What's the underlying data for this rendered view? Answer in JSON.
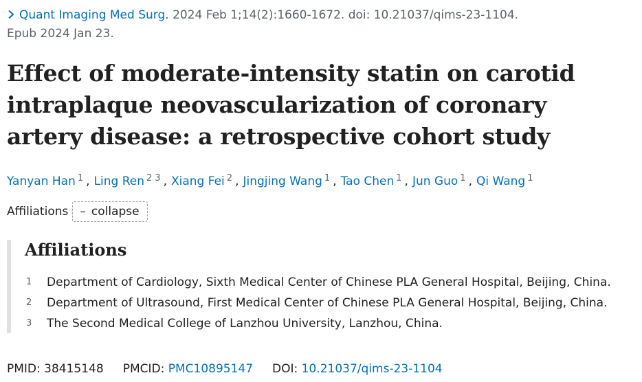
{
  "citation": {
    "journal": "Quant Imaging Med Surg.",
    "details": " 2024 Feb 1;14(2):1660-1672. doi: 10.21037/qims-23-1104.",
    "epub": "Epub 2024 Jan 23."
  },
  "title": "Effect of moderate-intensity statin on carotid intraplaque neovascularization of coronary artery disease: a retrospective cohort study",
  "authors": [
    {
      "name": "Yanyan Han",
      "affs": [
        "1"
      ]
    },
    {
      "name": "Ling Ren",
      "affs": [
        "2",
        "3"
      ]
    },
    {
      "name": "Xiang Fei",
      "affs": [
        "2"
      ]
    },
    {
      "name": "Jingjing Wang",
      "affs": [
        "1"
      ]
    },
    {
      "name": "Tao Chen",
      "affs": [
        "1"
      ]
    },
    {
      "name": "Jun Guo",
      "affs": [
        "1"
      ]
    },
    {
      "name": "Qi Wang",
      "affs": [
        "1"
      ]
    }
  ],
  "affiliations_toggle": {
    "label": "Affiliations",
    "button_symbol": "–",
    "button_label": "collapse"
  },
  "affiliations_panel": {
    "heading": "Affiliations",
    "items": [
      {
        "num": "1",
        "text": "Department of Cardiology, Sixth Medical Center of Chinese PLA General Hospital, Beijing, China."
      },
      {
        "num": "2",
        "text": "Department of Ultrasound, First Medical Center of Chinese PLA General Hospital, Beijing, China."
      },
      {
        "num": "3",
        "text": "The Second Medical College of Lanzhou University, Lanzhou, China."
      }
    ]
  },
  "identifiers": {
    "pmid_label": "PMID: ",
    "pmid": "38415148",
    "pmcid_label": "PMCID: ",
    "pmcid": "PMC10895147",
    "doi_label": "DOI: ",
    "doi": "10.21037/qims-23-1104"
  },
  "colors": {
    "link": "#0071bc",
    "muted": "#5b616b",
    "text": "#212121",
    "panel_border": "#dfe1e2"
  },
  "icons": {
    "citation_chevron": "chevron-right-icon"
  }
}
